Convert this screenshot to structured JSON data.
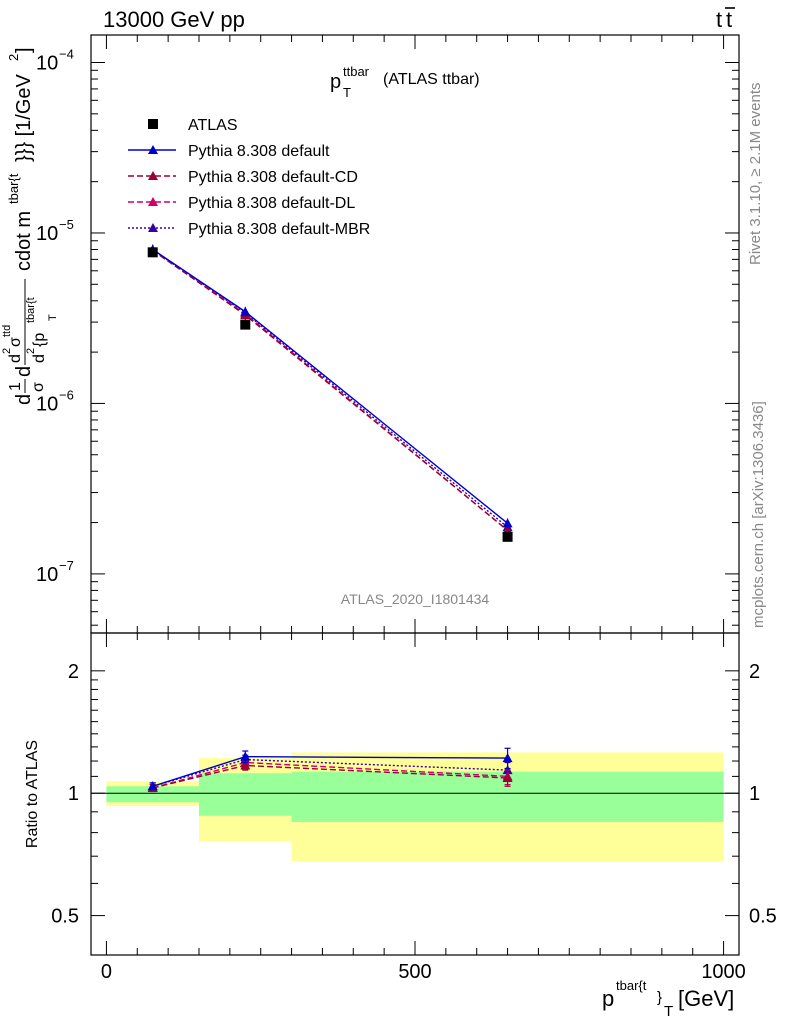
{
  "header": {
    "left": "13000 GeV pp",
    "right_main": "t",
    "right_bar": "t"
  },
  "side_labels": {
    "rivet": "Rivet 3.1.10, ≥ 2.1M events",
    "mcplots": "mcplots.cern.ch [arXiv:1306.3436]"
  },
  "plot_title": {
    "main": "p",
    "sup": "ttbar",
    "sub": "T",
    "rest": "(ATLAS ttbar)"
  },
  "watermark": "ATLAS_2020_I1801434",
  "y_label_main": {
    "part1": "d",
    "frac1_num": "1",
    "frac1_den": "σ",
    "part2": "d",
    "frac2_num": "d",
    "frac2_num_sup": "2",
    "frac2_num_sym": "σ",
    "frac2_num_sup2": "ttd",
    "frac2_den": "d",
    "frac2_den_sup": "2",
    "frac2_den_rest": "{p",
    "frac2_den_sup2": "tbar{t",
    "frac2_den_sub": "T",
    "after": "cdot m",
    "after_sup": "tbar{t",
    "after_rest": "}}} [1/GeV",
    "after_sup2": "2",
    "close": "]"
  },
  "y_label_ratio": "Ratio to ATLAS",
  "x_label": {
    "main": "p",
    "sup": "tbar{t",
    "mid": "}",
    "sub": "T",
    "unit": "[GeV]"
  },
  "legend": [
    {
      "label": "ATLAS",
      "color": "#000000",
      "marker": "square",
      "line": "none"
    },
    {
      "label": "Pythia 8.308 default",
      "color": "#0000cc",
      "marker": "triangle",
      "line": "solid"
    },
    {
      "label": "Pythia 8.308 default-CD",
      "color": "#990033",
      "marker": "triangle",
      "line": "dashed"
    },
    {
      "label": "Pythia 8.308 default-DL",
      "color": "#cc0066",
      "marker": "triangle",
      "line": "dashed"
    },
    {
      "label": "Pythia 8.308 default-MBR",
      "color": "#3300aa",
      "marker": "triangle",
      "line": "dotted"
    }
  ],
  "axes": {
    "main_y_ticks": [
      {
        "value": 1e-07,
        "base": "10",
        "exp": "−7"
      },
      {
        "value": 1e-06,
        "base": "10",
        "exp": "−6"
      },
      {
        "value": 1e-05,
        "base": "10",
        "exp": "−5"
      },
      {
        "value": 0.0001,
        "base": "10",
        "exp": "−4"
      }
    ],
    "ratio_y_ticks": [
      {
        "value": 0.5,
        "label": "0.5"
      },
      {
        "value": 1,
        "label": "1"
      },
      {
        "value": 2,
        "label": "2"
      }
    ],
    "x_ticks": [
      {
        "value": 0,
        "label": "0"
      },
      {
        "value": 500,
        "label": "500"
      },
      {
        "value": 1000,
        "label": "1000"
      }
    ]
  },
  "chart_data": [
    {
      "type": "scatter",
      "panel": "main",
      "xlim": [
        -25,
        1025
      ],
      "ylim": [
        4.5e-08,
        0.000145
      ],
      "log_y": true,
      "x": [
        75,
        225,
        650
      ],
      "series": [
        {
          "name": "ATLAS",
          "values": [
            7.7e-06,
            2.9e-06,
            1.65e-07
          ]
        },
        {
          "name": "Pythia 8.308 default",
          "values": [
            8e-06,
            3.45e-06,
            1.98e-07
          ]
        },
        {
          "name": "Pythia 8.308 default-CD",
          "values": [
            7.9e-06,
            3.3e-06,
            1.8e-07
          ]
        },
        {
          "name": "Pythia 8.308 default-DL",
          "values": [
            7.9e-06,
            3.35e-06,
            1.8e-07
          ]
        },
        {
          "name": "Pythia 8.308 default-MBR",
          "values": [
            7.95e-06,
            3.4e-06,
            1.88e-07
          ]
        }
      ]
    },
    {
      "type": "line",
      "panel": "ratio",
      "xlim": [
        -25,
        1025
      ],
      "ylim": [
        0.4,
        2.45
      ],
      "log_y": true,
      "x": [
        75,
        225,
        650
      ],
      "bands": {
        "bins": [
          [
            0,
            150
          ],
          [
            150,
            300
          ],
          [
            300,
            1000
          ]
        ],
        "green": [
          [
            0.95,
            1.04
          ],
          [
            0.88,
            1.12
          ],
          [
            0.85,
            1.13
          ]
        ],
        "yellow": [
          [
            0.93,
            1.07
          ],
          [
            0.76,
            1.22
          ],
          [
            0.68,
            1.26
          ]
        ]
      },
      "series": [
        {
          "name": "Pythia 8.308 default",
          "values": [
            1.04,
            1.23,
            1.22
          ],
          "errors": [
            0.02,
            0.04,
            0.07
          ]
        },
        {
          "name": "Pythia 8.308 default-CD",
          "values": [
            1.03,
            1.17,
            1.09
          ],
          "errors": [
            0.02,
            0.03,
            0.05
          ]
        },
        {
          "name": "Pythia 8.308 default-DL",
          "values": [
            1.03,
            1.19,
            1.1
          ],
          "errors": [
            0.02,
            0.03,
            0.05
          ]
        },
        {
          "name": "Pythia 8.308 default-MBR",
          "values": [
            1.04,
            1.21,
            1.14
          ],
          "errors": [
            0.02,
            0.03,
            0.05
          ]
        }
      ]
    }
  ]
}
